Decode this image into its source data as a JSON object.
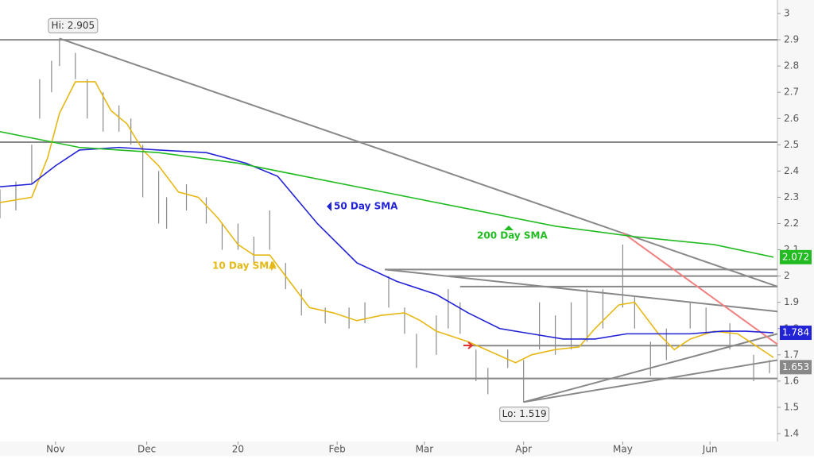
{
  "chart_data": {
    "type": "ohlc",
    "xlim": [
      0,
      196
    ],
    "ylim": [
      1.4,
      3
    ],
    "xticks": [
      {
        "value": 14,
        "label": "Nov"
      },
      {
        "value": 37,
        "label": "Dec"
      },
      {
        "value": 60,
        "label": "20"
      },
      {
        "value": 85,
        "label": "Feb"
      },
      {
        "value": 107,
        "label": "Mar"
      },
      {
        "value": 132,
        "label": "Apr"
      },
      {
        "value": 157,
        "label": "May"
      },
      {
        "value": 179,
        "label": "Jun"
      }
    ],
    "yticks": [
      1.4,
      1.5,
      1.6,
      1.7,
      1.8,
      1.9,
      2,
      2.1,
      2.2,
      2.3,
      2.4,
      2.5,
      2.6,
      2.7,
      2.8,
      2.9,
      3
    ],
    "bar_color": "#8a8a8a",
    "bars": {
      "x": [
        0,
        4,
        8,
        10,
        13,
        15,
        19,
        22,
        26,
        30,
        33,
        36,
        40,
        42,
        47,
        52,
        56,
        60,
        64,
        68,
        72,
        76,
        82,
        88,
        92,
        98,
        102,
        105,
        110,
        113,
        116,
        120,
        123,
        128,
        132,
        136,
        140,
        144,
        148,
        152,
        157,
        160,
        164,
        168,
        174,
        178,
        184,
        190,
        194
      ],
      "high": [
        2.33,
        2.36,
        2.5,
        2.75,
        2.82,
        2.905,
        2.85,
        2.75,
        2.7,
        2.65,
        2.6,
        2.5,
        2.4,
        2.3,
        2.35,
        2.3,
        2.2,
        2.2,
        2.15,
        2.25,
        2.05,
        1.95,
        1.88,
        1.88,
        1.9,
        2.0,
        1.88,
        1.78,
        1.85,
        1.95,
        1.9,
        1.72,
        1.65,
        1.72,
        1.68,
        1.9,
        1.85,
        1.9,
        1.95,
        1.95,
        2.12,
        1.92,
        1.75,
        1.8,
        1.9,
        1.88,
        1.82,
        1.7,
        1.68
      ],
      "low": [
        2.22,
        2.25,
        2.35,
        2.6,
        2.7,
        2.8,
        2.75,
        2.6,
        2.55,
        2.55,
        2.5,
        2.3,
        2.2,
        2.18,
        2.25,
        2.2,
        2.1,
        2.1,
        2.05,
        2.1,
        1.95,
        1.85,
        1.82,
        1.8,
        1.82,
        1.88,
        1.78,
        1.65,
        1.7,
        1.8,
        1.78,
        1.6,
        1.55,
        1.65,
        1.519,
        1.72,
        1.7,
        1.72,
        1.75,
        1.8,
        1.88,
        1.8,
        1.62,
        1.68,
        1.8,
        1.78,
        1.72,
        1.6,
        1.63
      ]
    },
    "last_price": 1.653,
    "series": [
      {
        "name": "10 Day SMA",
        "color": "#e6b814",
        "x": [
          0,
          8,
          12,
          15,
          19,
          24,
          28,
          32,
          36,
          40,
          45,
          50,
          55,
          60,
          64,
          68,
          72,
          78,
          84,
          90,
          96,
          102,
          106,
          110,
          114,
          118,
          124,
          130,
          134,
          140,
          146,
          150,
          156,
          160,
          166,
          170,
          174,
          180,
          186,
          190,
          195
        ],
        "values": [
          2.28,
          2.3,
          2.45,
          2.62,
          2.74,
          2.74,
          2.63,
          2.58,
          2.48,
          2.42,
          2.32,
          2.3,
          2.22,
          2.12,
          2.08,
          2.08,
          2.0,
          1.88,
          1.86,
          1.83,
          1.85,
          1.86,
          1.83,
          1.79,
          1.77,
          1.75,
          1.71,
          1.67,
          1.7,
          1.72,
          1.73,
          1.8,
          1.89,
          1.9,
          1.78,
          1.72,
          1.76,
          1.79,
          1.78,
          1.74,
          1.69
        ]
      },
      {
        "name": "50 Day SMA",
        "color": "#2323d6",
        "x": [
          0,
          8,
          14,
          20,
          30,
          40,
          52,
          62,
          70,
          80,
          90,
          100,
          110,
          118,
          126,
          134,
          142,
          150,
          158,
          166,
          174,
          182,
          188,
          195
        ],
        "values": [
          2.34,
          2.35,
          2.42,
          2.48,
          2.49,
          2.48,
          2.47,
          2.43,
          2.38,
          2.2,
          2.05,
          1.98,
          1.93,
          1.86,
          1.8,
          1.78,
          1.76,
          1.76,
          1.78,
          1.78,
          1.78,
          1.79,
          1.79,
          1.784
        ]
      },
      {
        "name": "200 Day SMA",
        "color": "#22bb22",
        "x": [
          0,
          20,
          40,
          60,
          80,
          100,
          120,
          140,
          160,
          180,
          195
        ],
        "values": [
          2.55,
          2.49,
          2.47,
          2.43,
          2.37,
          2.31,
          2.25,
          2.19,
          2.15,
          2.12,
          2.072
        ]
      }
    ],
    "trendlines": [
      {
        "x": [
          0,
          196
        ],
        "y": [
          2.9,
          2.9
        ],
        "color": "#888888"
      },
      {
        "x": [
          0,
          196
        ],
        "y": [
          2.51,
          2.51
        ],
        "color": "#888888"
      },
      {
        "x": [
          0,
          196
        ],
        "y": [
          1.61,
          1.61
        ],
        "color": "#888888"
      },
      {
        "x": [
          97,
          196
        ],
        "y": [
          2.025,
          2.025
        ],
        "color": "#888888"
      },
      {
        "x": [
          113,
          196
        ],
        "y": [
          2.0,
          2.0
        ],
        "color": "#888888"
      },
      {
        "x": [
          116,
          196
        ],
        "y": [
          1.96,
          1.96
        ],
        "color": "#888888"
      },
      {
        "x": [
          118,
          196
        ],
        "y": [
          1.735,
          1.735
        ],
        "color": "#888888"
      },
      {
        "x": [
          15,
          196
        ],
        "y": [
          2.905,
          1.96
        ],
        "color": "#888888"
      },
      {
        "x": [
          97,
          196
        ],
        "y": [
          2.025,
          1.865
        ],
        "color": "#888888"
      },
      {
        "x": [
          132,
          196
        ],
        "y": [
          1.52,
          1.68
        ],
        "color": "#888888"
      },
      {
        "x": [
          132,
          196
        ],
        "y": [
          1.52,
          1.78
        ],
        "color": "#888888"
      },
      {
        "x": [
          157,
          196
        ],
        "y": [
          2.165,
          1.74
        ],
        "color": "#f08080"
      }
    ],
    "annotations": [
      {
        "text": "Hi: 2.905",
        "x": 15,
        "y": 2.905
      },
      {
        "text": "Lo: 1.519",
        "x": 132,
        "y": 1.519
      }
    ]
  }
}
